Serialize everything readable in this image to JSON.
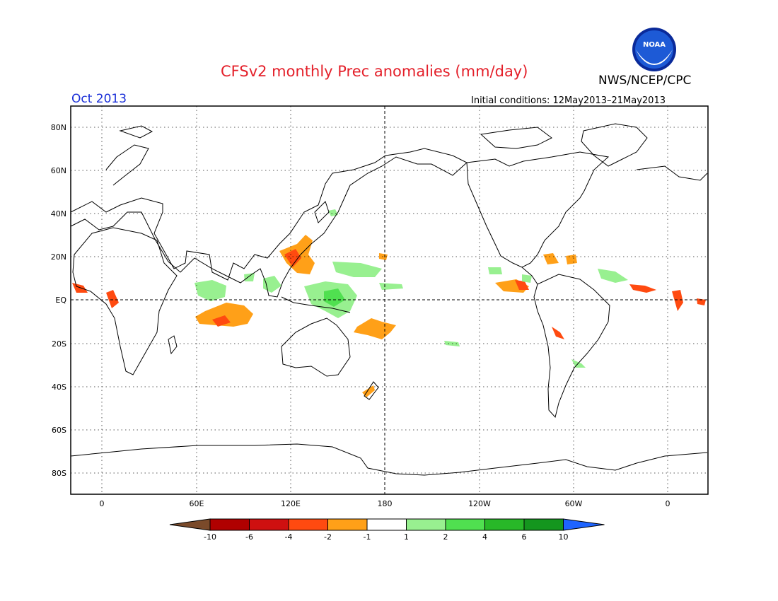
{
  "header": {
    "title": "CFSv2 monthly Prec anomalies (mm/day)",
    "agency": "NWS/NCEP/CPC",
    "month": "Oct 2013",
    "initial_conditions": "Initial conditions: 12May2013–21May2013",
    "logo_text": "NOAA"
  },
  "map": {
    "lat_labels": [
      "80N",
      "60N",
      "40N",
      "20N",
      "EQ",
      "20S",
      "40S",
      "60S",
      "80S"
    ],
    "lon_labels": [
      "0",
      "60E",
      "120E",
      "180",
      "120W",
      "60W",
      "0"
    ]
  },
  "legend": {
    "labels": [
      "-10",
      "-6",
      "-4",
      "-2",
      "-1",
      "1",
      "2",
      "4",
      "6",
      "10"
    ],
    "colors": [
      "#7a4a2a",
      "#b00000",
      "#cf1010",
      "#ff4a10",
      "#ffa018",
      "#ffffff",
      "#98f090",
      "#50e050",
      "#28b828",
      "#14961e",
      "#1e64ff"
    ]
  },
  "colors": {
    "title": "#e4202a",
    "month": "#1a2fd8",
    "dry_strong": "#ff4a10",
    "dry": "#ffa018",
    "wet": "#98f090",
    "wet_mid": "#50e050"
  }
}
